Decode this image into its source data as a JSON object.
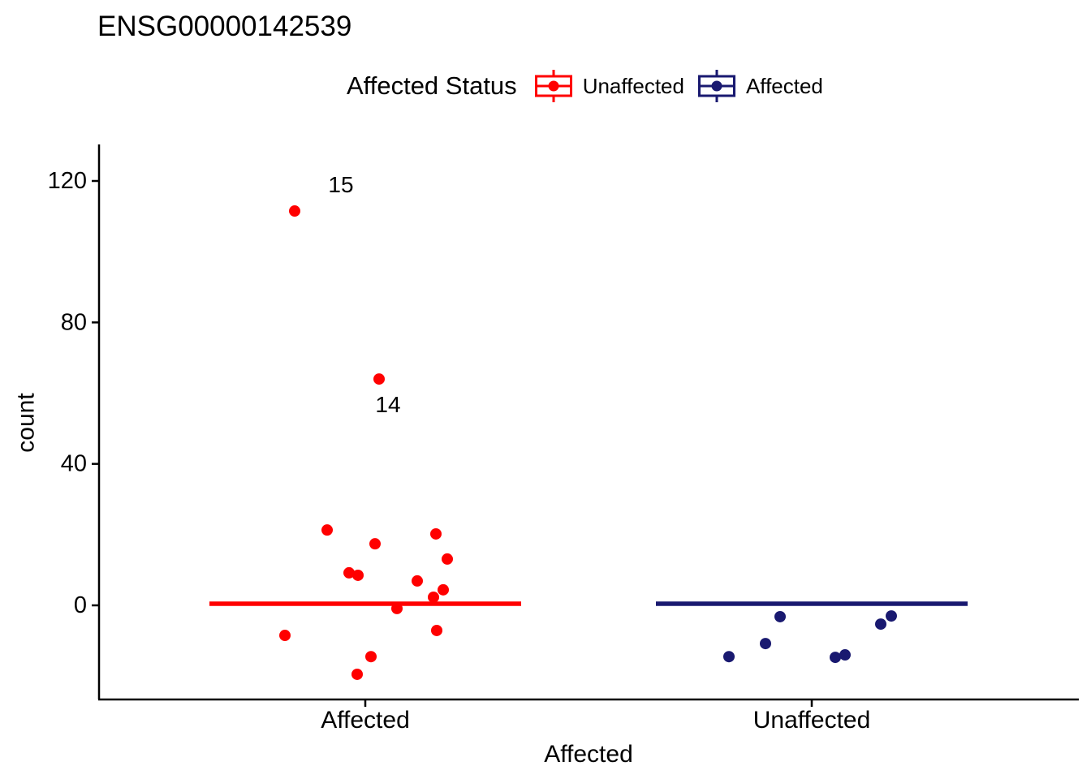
{
  "title": "ENSG00000142539",
  "legend": {
    "title": "Affected Status",
    "items": [
      {
        "label": "Unaffected",
        "color": "#FF0000"
      },
      {
        "label": "Affected",
        "color": "#191970"
      }
    ]
  },
  "chart_data": {
    "type": "scatter",
    "title": "ENSG00000142539",
    "xlabel": "Affected",
    "ylabel": "count",
    "categories": [
      "Affected",
      "Unaffected"
    ],
    "yticks": [
      0,
      40,
      80,
      120
    ],
    "ylim": [
      -26,
      132
    ],
    "grid": false,
    "legend_position": "top",
    "series": [
      {
        "name": "Unaffected",
        "color": "#FF0000",
        "category": "Affected",
        "median": 0,
        "points": [
          {
            "dx": -87,
            "y": 111.5
          },
          {
            "dx": 17,
            "y": 64.0
          },
          {
            "dx": -47,
            "y": 21.3
          },
          {
            "dx": 87,
            "y": 20.2
          },
          {
            "dx": 12,
            "y": 17.4
          },
          {
            "dx": 101,
            "y": 13.1
          },
          {
            "dx": -20,
            "y": 9.2
          },
          {
            "dx": -9,
            "y": 8.5
          },
          {
            "dx": 64,
            "y": 6.9
          },
          {
            "dx": 96,
            "y": 4.4
          },
          {
            "dx": 84,
            "y": 2.3
          },
          {
            "dx": 39,
            "y": -0.9
          },
          {
            "dx": 88,
            "y": -7.1
          },
          {
            "dx": -99,
            "y": -8.5
          },
          {
            "dx": 7,
            "y": -14.5
          },
          {
            "dx": -10,
            "y": -19.5
          }
        ]
      },
      {
        "name": "Affected",
        "color": "#191970",
        "category": "Unaffected",
        "median": 0,
        "points": [
          {
            "dx": -39,
            "y": -3.2
          },
          {
            "dx": -57,
            "y": -10.8
          },
          {
            "dx": -102,
            "y": -14.5
          },
          {
            "dx": 29,
            "y": -14.7
          },
          {
            "dx": 41,
            "y": -14.0
          },
          {
            "dx": 85,
            "y": -5.3
          },
          {
            "dx": 98,
            "y": -3.0
          }
        ]
      }
    ],
    "annotations": [
      {
        "text": "15",
        "category": "Affected",
        "dx": -30,
        "y": 119.1
      },
      {
        "text": "14",
        "category": "Affected",
        "dx": 28,
        "y": 56.9
      }
    ]
  }
}
